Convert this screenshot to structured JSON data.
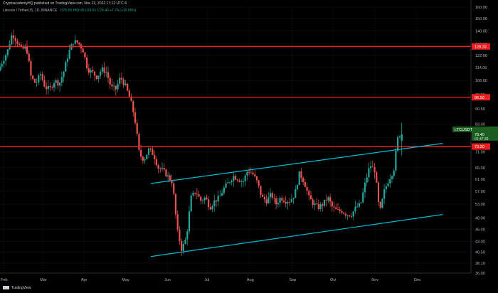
{
  "header": {
    "publisher": "CryptoacademyHQ published on TradingView.com, Nov 23, 2022 17:12 UTC-5"
  },
  "symbol_line": {
    "name": "Litecoin / TetherUS, 1D, BINANCE",
    "ohlc": "O75.65 H83.66 L69.61 C78.40 +7.74 (+10.95%)"
  },
  "footer": {
    "brand": "TradingView"
  },
  "price_axis": {
    "tick_labels": [
      "160.00",
      "150.00",
      "140.00",
      "130.00",
      "122.00",
      "114.00",
      "106.00",
      "98.00",
      "90.50",
      "83.00",
      "77.00",
      "71.00",
      "65.00",
      "61.00",
      "57.00",
      "53.00",
      "49.00",
      "46.00",
      "43.00",
      "40.50",
      "38.10",
      "36.00"
    ]
  },
  "time_axis": {
    "tick_labels": [
      "Feb",
      "Mar",
      "Apr",
      "May",
      "Jun",
      "Jul",
      "Aug",
      "Sep",
      "Oct",
      "Nov",
      "Dec"
    ]
  },
  "badges": {
    "level_high": "128.33",
    "level_mid": "96.50",
    "symbol": "LTCUSDT",
    "price": "78.40",
    "countdown": "01:47:39",
    "level_low": "73.20"
  },
  "chart_data": {
    "type": "candlestick",
    "log_scale": true,
    "ylim": [
      36,
      160
    ],
    "colors": {
      "up": "#26a69a",
      "down": "#ef5350",
      "level": "#ff1f1f",
      "channel": "#00bcd4"
    },
    "horizontal_levels": [
      128.33,
      96.5,
      73.2
    ],
    "channel_upper": {
      "x": [
        0.32,
        0.94
      ],
      "y": [
        59.5,
        74.5
      ]
    },
    "channel_lower": {
      "x": [
        0.32,
        0.94
      ],
      "y": [
        39.5,
        50.0
      ]
    },
    "price_path": [
      [
        0.0,
        112
      ],
      [
        0.02,
        125
      ],
      [
        0.03,
        138
      ],
      [
        0.04,
        132
      ],
      [
        0.05,
        126
      ],
      [
        0.06,
        128
      ],
      [
        0.07,
        108
      ],
      [
        0.08,
        104
      ],
      [
        0.09,
        110
      ],
      [
        0.1,
        102
      ],
      [
        0.11,
        101
      ],
      [
        0.12,
        106
      ],
      [
        0.13,
        104
      ],
      [
        0.14,
        112
      ],
      [
        0.15,
        124
      ],
      [
        0.16,
        132
      ],
      [
        0.17,
        131
      ],
      [
        0.18,
        126
      ],
      [
        0.19,
        113
      ],
      [
        0.2,
        111
      ],
      [
        0.21,
        108
      ],
      [
        0.22,
        113
      ],
      [
        0.23,
        111
      ],
      [
        0.24,
        102
      ],
      [
        0.25,
        101
      ],
      [
        0.26,
        108
      ],
      [
        0.27,
        103
      ],
      [
        0.28,
        96
      ],
      [
        0.29,
        86
      ],
      [
        0.3,
        70
      ],
      [
        0.31,
        68
      ],
      [
        0.32,
        72
      ],
      [
        0.33,
        70
      ],
      [
        0.34,
        65
      ],
      [
        0.35,
        64
      ],
      [
        0.36,
        62
      ],
      [
        0.37,
        60
      ],
      [
        0.38,
        46
      ],
      [
        0.39,
        41
      ],
      [
        0.4,
        44
      ],
      [
        0.41,
        55
      ],
      [
        0.42,
        57
      ],
      [
        0.43,
        54
      ],
      [
        0.44,
        55
      ],
      [
        0.45,
        52
      ],
      [
        0.46,
        54
      ],
      [
        0.47,
        55
      ],
      [
        0.48,
        58
      ],
      [
        0.49,
        60
      ],
      [
        0.5,
        62
      ],
      [
        0.51,
        61
      ],
      [
        0.52,
        60
      ],
      [
        0.53,
        64
      ],
      [
        0.54,
        63
      ],
      [
        0.55,
        60
      ],
      [
        0.56,
        55
      ],
      [
        0.57,
        54
      ],
      [
        0.58,
        56
      ],
      [
        0.59,
        53
      ],
      [
        0.6,
        55
      ],
      [
        0.61,
        54
      ],
      [
        0.62,
        54
      ],
      [
        0.63,
        56
      ],
      [
        0.64,
        63
      ],
      [
        0.65,
        60
      ],
      [
        0.66,
        55
      ],
      [
        0.67,
        53
      ],
      [
        0.68,
        52
      ],
      [
        0.69,
        53
      ],
      [
        0.7,
        55
      ],
      [
        0.71,
        52
      ],
      [
        0.72,
        51
      ],
      [
        0.73,
        51
      ],
      [
        0.74,
        50
      ],
      [
        0.75,
        50
      ],
      [
        0.76,
        52
      ],
      [
        0.77,
        53
      ],
      [
        0.78,
        60
      ],
      [
        0.79,
        66
      ],
      [
        0.8,
        64
      ],
      [
        0.81,
        50
      ],
      [
        0.82,
        57
      ],
      [
        0.83,
        61
      ],
      [
        0.84,
        64
      ],
      [
        0.85,
        78.4
      ]
    ],
    "last_price": 78.4
  }
}
